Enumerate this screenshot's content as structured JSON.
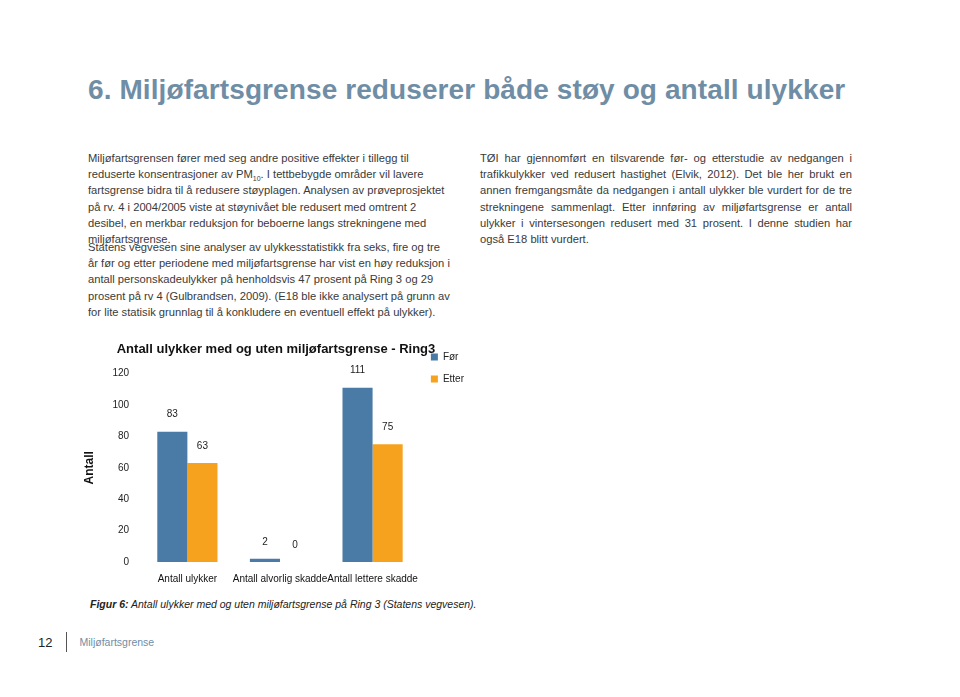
{
  "header": {
    "title": "6. Miljøfartsgrense reduserer både støy og antall ulykker"
  },
  "paragraphs": [
    [
      {
        "text": "Miljøfartsgrensen fører med seg andre positive effekter i tillegg til reduserte konsentrasjoner av PM"
      },
      {
        "sub": "10"
      },
      {
        "text": ". I tettbebygde områder vil lavere fartsgrense bidra til å redusere støyplagen. Analysen av prøveprosjektet på rv. 4 i 2004/2005 viste at støynivået ble redusert med omtrent 2 desibel, en merkbar reduksjon for beboerne langs strekningene med miljøfartsgrense."
      }
    ],
    [
      {
        "text": "TØI har gjennomført en tilsvarende før- og etterstudie av nedgangen i trafikkulykker ved redusert hastighet (Elvik, 2012). Det ble her brukt en annen fremgangsmåte da nedgangen i antall ulykker ble vurdert for de tre strekningene sammenlagt. Etter innføring av miljøfartsgrense er antall ulykker i vintersesongen redusert med 31 prosent. I denne studien har også E18 blitt vurdert."
      }
    ],
    [
      {
        "text": "Statens vegvesen sine analyser av ulykkesstatistikk fra seks, fire og tre år før og etter periodene med miljøfartsgrense har vist en høy reduksjon i antall personskadeulykker på henholdsvis 47 prosent på Ring 3 og 29 prosent på rv 4 (Gulbrandsen, 2009). (E18 ble ikke analysert på grunn av for lite statisik grunnlag til å konkludere en eventuell effekt på ulykker)."
      }
    ]
  ],
  "chart_data": {
    "type": "bar",
    "title": "Antall ulykker med og uten miljøfartsgrense - Ring3",
    "y_label": "Antall",
    "categories": [
      "Antall ulykker",
      "Antall alvorlig skadde",
      "Antall lettere skadde"
    ],
    "series": [
      {
        "name": "Før",
        "color": "#4a7ba6",
        "values": [
          83,
          2,
          111
        ]
      },
      {
        "name": "Etter",
        "color": "#f6a21e",
        "values": [
          63,
          0,
          75
        ]
      }
    ],
    "ylim": [
      0,
      120
    ],
    "yticks": [
      0,
      20,
      40,
      60,
      80,
      100,
      120
    ],
    "grid": false,
    "legend": "right",
    "data_labels": true
  },
  "caption": {
    "label": "Figur 6:",
    "text": "Antall ulykker med og uten miljøfartsgrense på Ring 3 (Statens vegvesen)."
  },
  "footer": {
    "page": "12",
    "text": "Miljøfartsgrense"
  }
}
